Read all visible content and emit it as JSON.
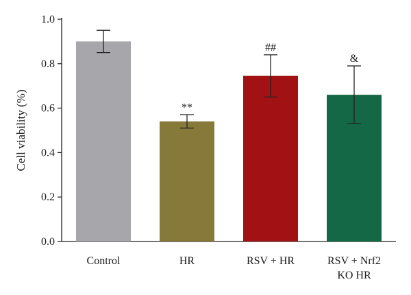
{
  "chart_data": {
    "type": "bar",
    "categories": [
      "Control",
      "HR",
      "RSV + HR",
      "RSV + Nrf2 KO HR"
    ],
    "category_lines": [
      [
        "Control"
      ],
      [
        "HR"
      ],
      [
        "RSV + HR"
      ],
      [
        "RSV + Nrf2",
        "KO HR"
      ]
    ],
    "values": [
      0.9,
      0.54,
      0.745,
      0.66
    ],
    "error": [
      0.05,
      0.03,
      0.095,
      0.13
    ],
    "annotations": [
      "",
      "**",
      "##",
      "&"
    ],
    "colors": [
      "#a7a6aa",
      "#87793a",
      "#a21214",
      "#146845"
    ],
    "ylabel": "Cell viability (%)",
    "xlabel": "",
    "ylim": [
      0,
      1.0
    ],
    "yticks": [
      "0.0",
      "0.2",
      "0.4",
      "0.6",
      "0.8",
      "1.0"
    ],
    "grid": false
  }
}
